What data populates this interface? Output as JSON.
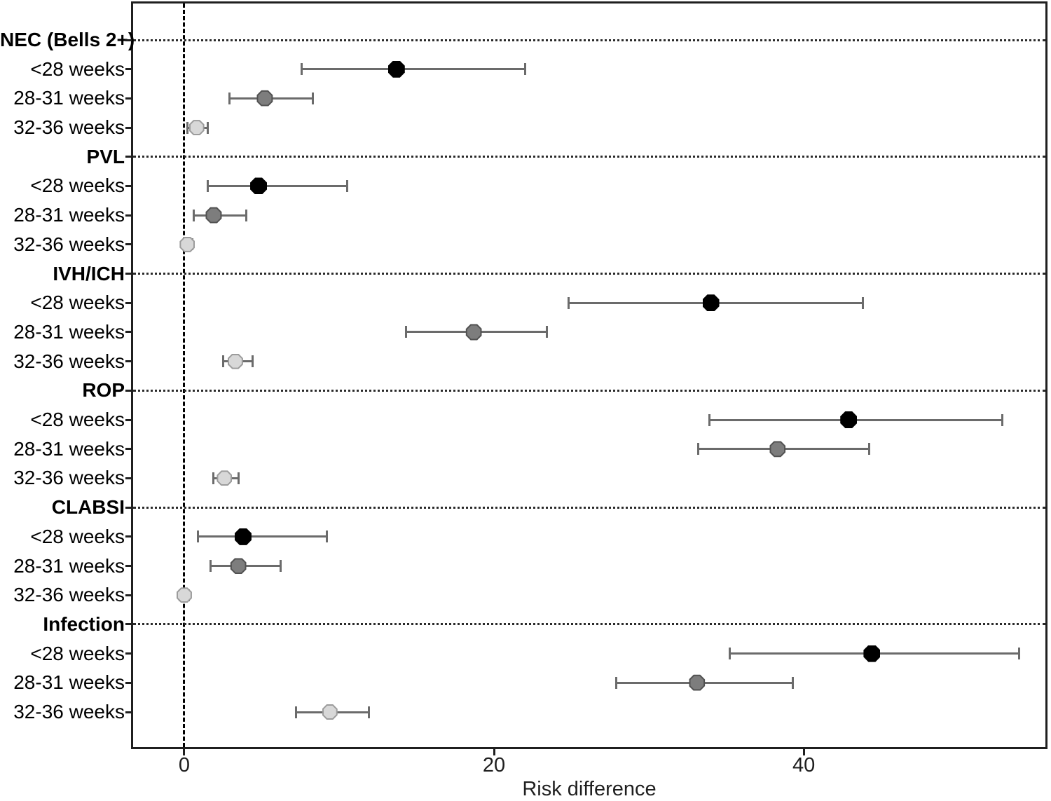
{
  "chart_data": {
    "type": "scatter",
    "variant": "forest-plot",
    "title": "",
    "xlabel": "Risk difference",
    "x_ticks": [
      0,
      20,
      40
    ],
    "xlim": [
      -3.3,
      55.6
    ],
    "reference_line_x": 0,
    "grid": "horizontal-dotted-at-group-headers",
    "legend": "none",
    "styles": [
      {
        "name": "<28 weeks",
        "fill": "#000000",
        "stroke": "#000000",
        "size": 24
      },
      {
        "name": "28-31 weeks",
        "fill": "#7d7d7d",
        "stroke": "#515151",
        "size": 23
      },
      {
        "name": "32-36 weeks",
        "fill": "#d8d8d8",
        "stroke": "#9c9c9c",
        "size": 22
      }
    ],
    "error_bar_color": "#6b6b6b",
    "groups": [
      {
        "label": "NEC (Bells 2+)",
        "rows": [
          {
            "label": "<28 weeks",
            "style": 0,
            "value": 13.7,
            "ci": [
              7.6,
              22.0
            ]
          },
          {
            "label": "28-31 weeks",
            "style": 1,
            "value": 5.2,
            "ci": [
              2.9,
              8.3
            ]
          },
          {
            "label": "32-36 weeks",
            "style": 2,
            "value": 0.8,
            "ci": [
              0.2,
              1.5
            ]
          }
        ]
      },
      {
        "label": "PVL",
        "rows": [
          {
            "label": "<28 weeks",
            "style": 0,
            "value": 4.8,
            "ci": [
              1.5,
              10.5
            ]
          },
          {
            "label": "28-31 weeks",
            "style": 1,
            "value": 1.9,
            "ci": [
              0.6,
              4.0
            ]
          },
          {
            "label": "32-36 weeks",
            "style": 2,
            "value": 0.2,
            "ci": [
              0.0,
              0.5
            ]
          }
        ]
      },
      {
        "label": "IVH/ICH",
        "rows": [
          {
            "label": "<28 weeks",
            "style": 0,
            "value": 34.0,
            "ci": [
              24.8,
              43.8
            ]
          },
          {
            "label": "28-31 weeks",
            "style": 1,
            "value": 18.7,
            "ci": [
              14.3,
              23.4
            ]
          },
          {
            "label": "32-36 weeks",
            "style": 2,
            "value": 3.3,
            "ci": [
              2.5,
              4.4
            ]
          }
        ]
      },
      {
        "label": "ROP",
        "rows": [
          {
            "label": "<28 weeks",
            "style": 0,
            "value": 42.9,
            "ci": [
              33.9,
              52.8
            ]
          },
          {
            "label": "28-31 weeks",
            "style": 1,
            "value": 38.3,
            "ci": [
              33.2,
              44.2
            ]
          },
          {
            "label": "32-36 weeks",
            "style": 2,
            "value": 2.6,
            "ci": [
              1.9,
              3.5
            ]
          }
        ]
      },
      {
        "label": "CLABSI",
        "rows": [
          {
            "label": "<28 weeks",
            "style": 0,
            "value": 3.8,
            "ci": [
              0.9,
              9.2
            ]
          },
          {
            "label": "28-31 weeks",
            "style": 1,
            "value": 3.5,
            "ci": [
              1.7,
              6.2
            ]
          },
          {
            "label": "32-36 weeks",
            "style": 2,
            "value": 0.0,
            "ci": [
              -0.3,
              0.3
            ]
          }
        ]
      },
      {
        "label": "Infection",
        "rows": [
          {
            "label": "<28 weeks",
            "style": 0,
            "value": 44.4,
            "ci": [
              35.2,
              53.9
            ]
          },
          {
            "label": "28-31 weeks",
            "style": 1,
            "value": 33.1,
            "ci": [
              27.9,
              39.3
            ]
          },
          {
            "label": "32-36 weeks",
            "style": 2,
            "value": 9.4,
            "ci": [
              7.2,
              11.9
            ]
          }
        ]
      }
    ]
  }
}
